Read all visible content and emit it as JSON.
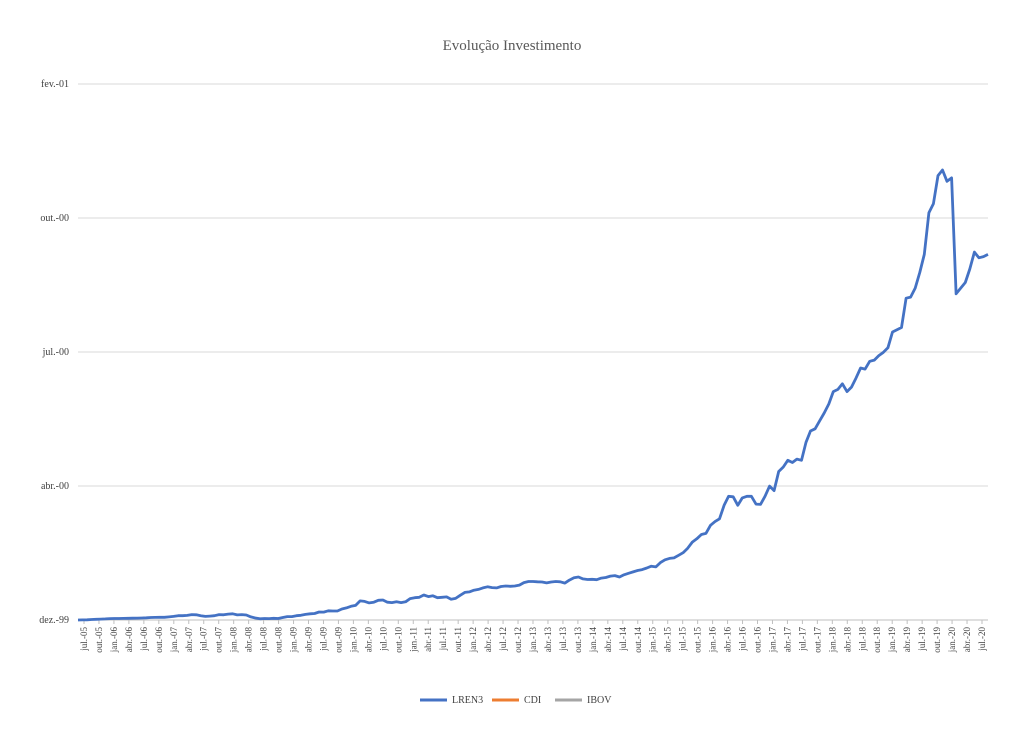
{
  "chart_data": {
    "type": "line",
    "title": "Evolução Investimento",
    "xlabel": "",
    "ylabel": "",
    "x_tick_labels": [
      "jul.-05",
      "out.-05",
      "jan.-06",
      "abr.-06",
      "jul.-06",
      "out.-06",
      "jan.-07",
      "abr.-07",
      "jul.-07",
      "out.-07",
      "jan.-08",
      "abr.-08",
      "jul.-08",
      "out.-08",
      "jan.-09",
      "abr.-09",
      "jul.-09",
      "out.-09",
      "jan.-10",
      "abr.-10",
      "jul.-10",
      "out.-10",
      "jan.-11",
      "abr.-11",
      "jul.-11",
      "out.-11",
      "jan.-12",
      "abr.-12",
      "jul.-12",
      "out.-12",
      "jan.-13",
      "abr.-13",
      "jul.-13",
      "out.-13",
      "jan.-14",
      "abr.-14",
      "jul.-14",
      "out.-14",
      "jan.-15",
      "abr.-15",
      "jul.-15",
      "out.-15",
      "jan.-16",
      "abr.-16",
      "jul.-16",
      "out.-16",
      "jan.-17",
      "abr.-17",
      "jul.-17",
      "out.-17",
      "jan.-18",
      "abr.-18",
      "jul.-18",
      "out.-18",
      "jan.-19",
      "abr.-19",
      "jul.-19",
      "out.-19",
      "jan.-20",
      "abr.-20",
      "jul.-20"
    ],
    "y_tick_labels": [
      "dez.-99",
      "abr.-00",
      "jul.-00",
      "out.-00",
      "fev.-01"
    ],
    "grid": true,
    "legend_position": "bottom",
    "series": [
      {
        "name": "LREN3",
        "color": "#4472C4",
        "values": [
          1.0,
          1.01,
          1.02,
          1.04,
          1.06,
          1.08,
          1.1,
          1.12,
          1.13,
          1.13,
          1.14,
          1.15,
          1.16,
          1.17,
          1.18,
          1.2,
          1.22,
          1.23,
          1.24,
          1.24,
          1.28,
          1.32,
          1.38,
          1.38,
          1.41,
          1.48,
          1.46,
          1.38,
          1.32,
          1.35,
          1.38,
          1.48,
          1.46,
          1.52,
          1.55,
          1.45,
          1.48,
          1.44,
          1.28,
          1.18,
          1.11,
          1.13,
          1.12,
          1.15,
          1.13,
          1.22,
          1.3,
          1.3,
          1.38,
          1.42,
          1.5,
          1.55,
          1.58,
          1.71,
          1.7,
          1.82,
          1.8,
          1.8,
          1.98,
          2.08,
          2.22,
          2.3,
          2.7,
          2.65,
          2.52,
          2.58,
          2.75,
          2.78,
          2.58,
          2.55,
          2.62,
          2.55,
          2.62,
          2.9,
          2.98,
          3.02,
          3.22,
          3.08,
          3.15,
          2.98,
          3.02,
          3.05,
          2.85,
          2.92,
          3.2,
          3.45,
          3.5,
          3.65,
          3.72,
          3.85,
          3.95,
          3.88,
          3.85,
          3.98,
          4.02,
          4.0,
          4.02,
          4.1,
          4.32,
          4.42,
          4.42,
          4.4,
          4.38,
          4.3,
          4.38,
          4.42,
          4.4,
          4.28,
          4.55,
          4.75,
          4.82,
          4.65,
          4.6,
          4.62,
          4.58,
          4.72,
          4.78,
          4.9,
          4.95,
          4.82,
          5.02,
          5.15,
          5.28,
          5.4,
          5.48,
          5.62,
          5.78,
          5.72,
          6.1,
          6.35,
          6.48,
          6.52,
          6.75,
          6.98,
          7.38,
          7.92,
          8.22,
          8.6,
          8.7,
          9.42,
          9.75,
          10.0,
          11.2,
          12.0,
          11.95,
          11.2,
          11.85,
          12.0,
          12.0,
          11.3,
          11.28,
          12.0,
          12.9,
          12.5,
          14.2,
          14.6,
          15.2,
          15.0,
          15.3,
          15.2,
          16.8,
          17.8,
          18.0,
          18.7,
          19.4,
          20.2,
          21.3,
          21.5,
          22.0,
          21.3,
          21.7,
          22.5,
          23.4,
          23.3,
          24.0,
          24.1,
          24.5,
          24.8,
          25.2,
          26.6,
          26.8,
          27.0,
          29.6,
          29.7,
          30.5,
          31.9,
          33.5,
          37.2,
          38.0,
          40.5,
          41.0,
          40.0,
          40.3,
          30.0,
          30.5,
          31.0,
          32.2,
          33.7,
          33.2,
          33.3,
          33.5
        ]
      },
      {
        "name": "CDI",
        "color": "#ED7D31",
        "values": []
      },
      {
        "name": "IBOV",
        "color": "#A5A5A5",
        "values": []
      }
    ]
  }
}
